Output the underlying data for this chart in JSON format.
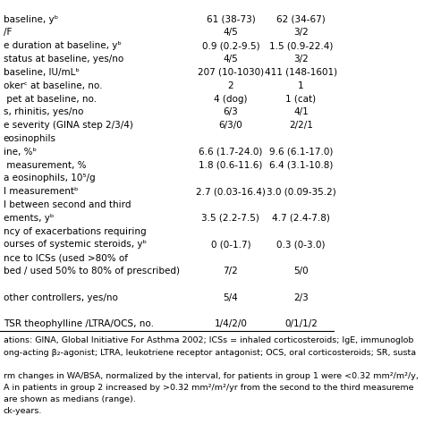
{
  "rows": [
    [
      "baseline, yᵇ",
      "61 (38-73)",
      "62 (34-67)"
    ],
    [
      "/F",
      "4/5",
      "3/2"
    ],
    [
      "e duration at baseline, yᵇ",
      "0.9 (0.2-9.5)",
      "1.5 (0.9-22.4)"
    ],
    [
      "status at baseline, yes/no",
      "4/5",
      "3/2"
    ],
    [
      "baseline, IU/mLᵇ",
      "207 (10-1030)",
      "411 (148-1601)"
    ],
    [
      "okerᶜ at baseline, no.",
      "2",
      "1"
    ],
    [
      " pet at baseline, no.",
      "4 (dog)",
      "1 (cat)"
    ],
    [
      "s, rhinitis, yes/no",
      "6/3",
      "4/1"
    ],
    [
      "e severity (GINA step 2/3/4)",
      "6/3/0",
      "2/2/1"
    ],
    [
      "eosinophils",
      "",
      ""
    ],
    [
      "ine, %ᵇ",
      "6.6 (1.7-24.0)",
      "9.6 (6.1-17.0)"
    ],
    [
      " measurement, %",
      "1.8 (0.6-11.6)",
      "6.4 (3.1-10.8)"
    ],
    [
      "a eosinophils, 10⁵/g",
      "",
      ""
    ],
    [
      "l measurementᵇ",
      "2.7 (0.03-16.4)",
      "3.0 (0.09-35.2)"
    ],
    [
      "l between second and third",
      "",
      ""
    ],
    [
      "ements, yᵇ",
      "3.5 (2.2-7.5)",
      "4.7 (2.4-7.8)"
    ],
    [
      "ncy of exacerbations requiring",
      "",
      ""
    ],
    [
      "ourses of systemic steroids, yᵇ",
      "0 (0-1.7)",
      "0.3 (0-3.0)"
    ],
    [
      "nce to ICSs (used >80% of",
      "",
      ""
    ],
    [
      "bed / used 50% to 80% of prescribed)",
      "7/2",
      "5/0"
    ],
    [
      "",
      "",
      ""
    ],
    [
      "other controllers, yes/no",
      "5/4",
      "2/3"
    ],
    [
      "",
      "",
      ""
    ],
    [
      "TSR theophylline /LTRA/OCS, no.",
      "1/4/2/0",
      "0/1/1/2"
    ]
  ],
  "footnotes": [
    "ations: GINA, Global Initiative For Asthma 2002; ICSs = inhaled corticosteroids; IgE, immunoglob",
    "ong-acting β₂-agonist; LTRA, leukotriene receptor antagonist; OCS, oral corticosteroids; SR, susta",
    "",
    "rm changes in WA/BSA, normalized by the interval, for patients in group 1 were <0.32 mm²/m²/y,",
    "A in patients in group 2 increased by >0.32 mm²/m²/yr from the second to the third measureme",
    "are shown as medians (range).",
    "ck-years."
  ],
  "bg_color": "#ffffff",
  "text_color": "#000000",
  "font_size": 7.5,
  "footnote_font_size": 6.8
}
